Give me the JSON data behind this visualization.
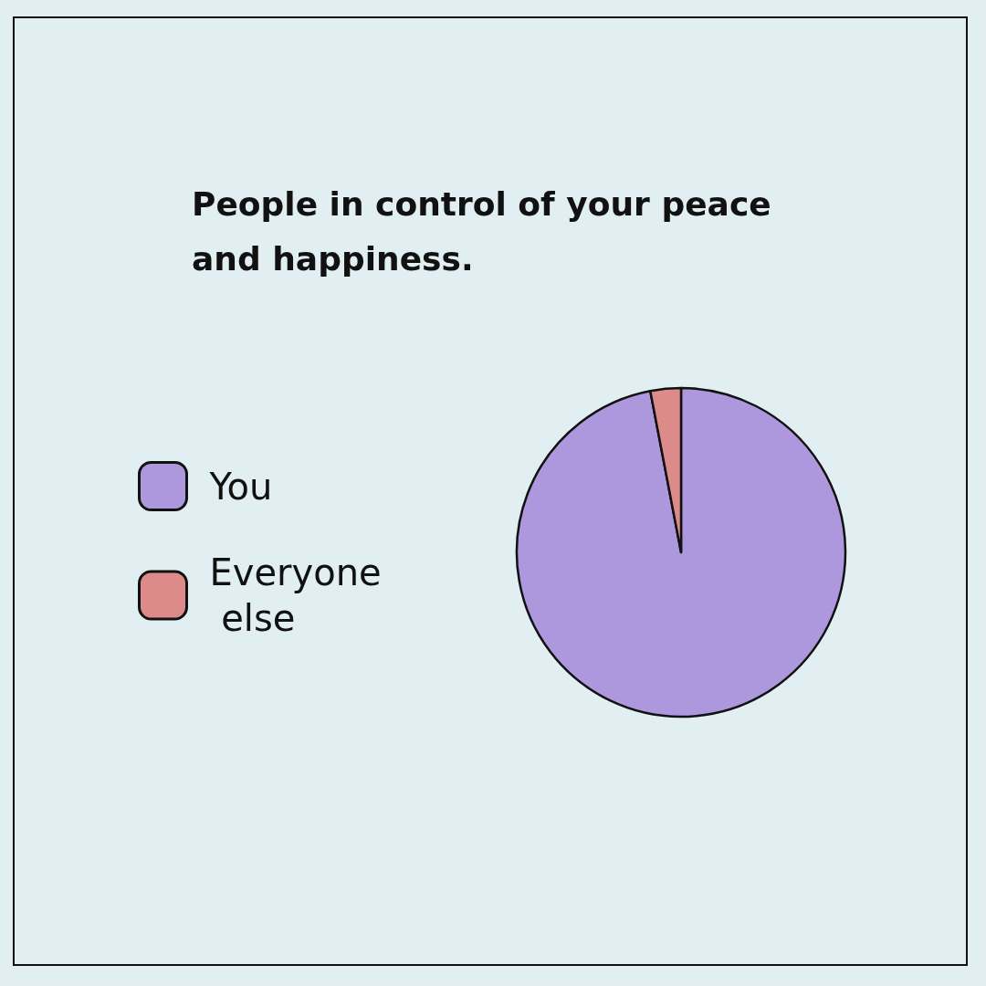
{
  "chart_data": {
    "type": "pie",
    "title": "People in control of your peace and happiness.",
    "categories": [
      "You",
      "Everyone else"
    ],
    "values": [
      97,
      3
    ],
    "colors": [
      "#ad98dd",
      "#dc8b8a"
    ],
    "legend": "left"
  }
}
